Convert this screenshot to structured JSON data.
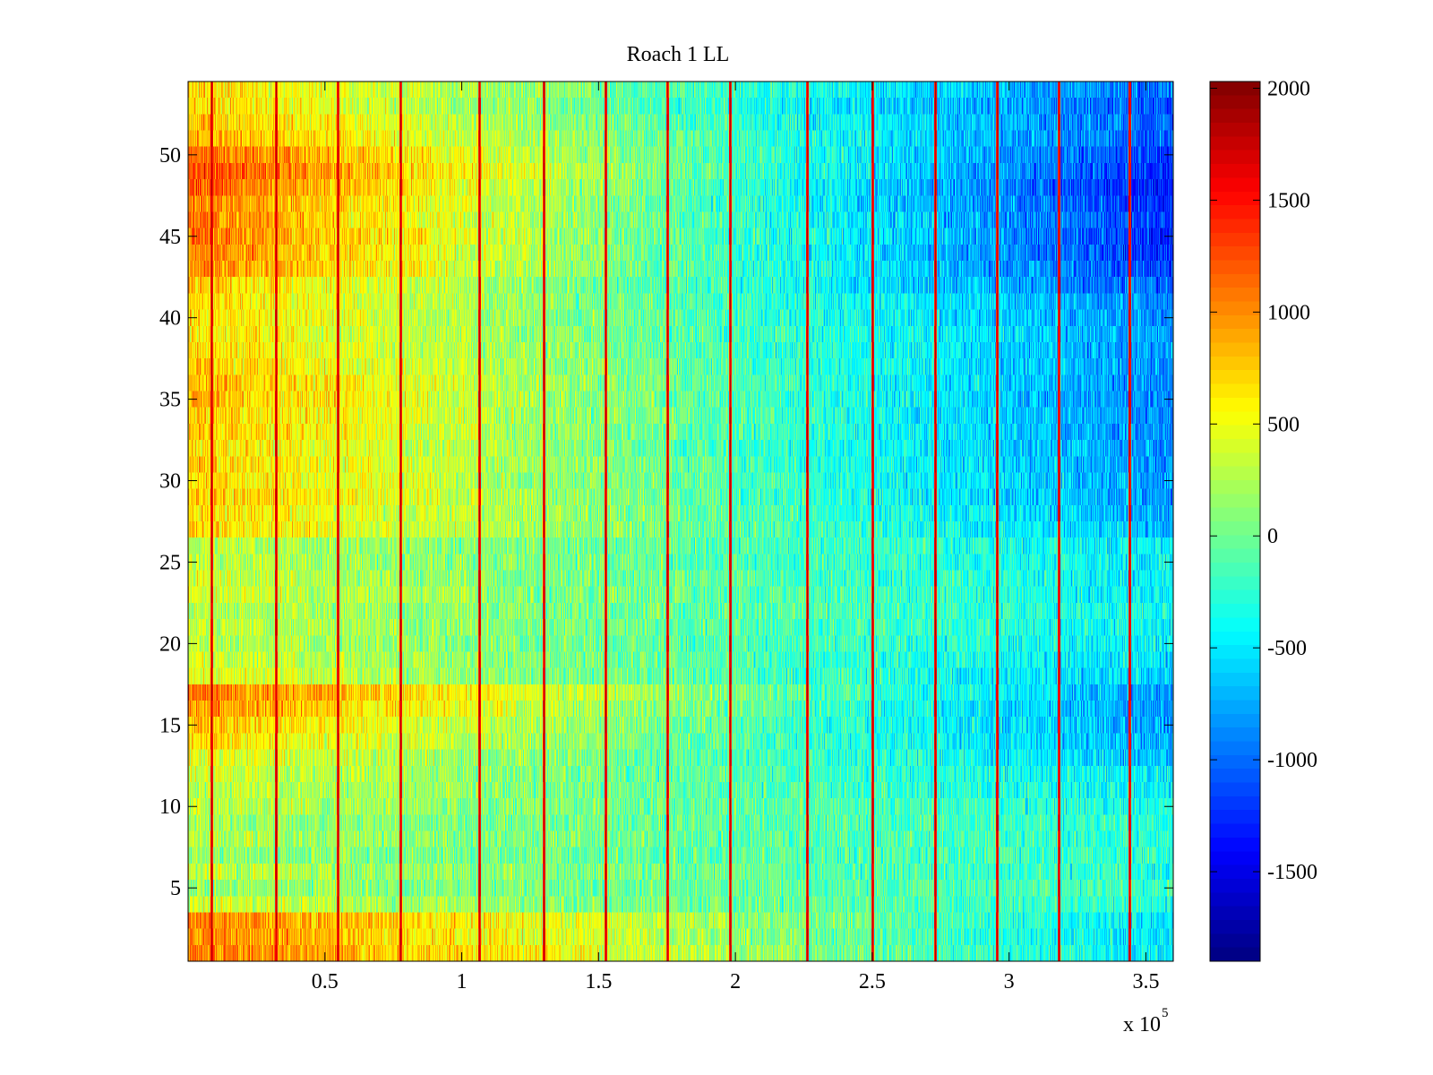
{
  "chart_data": {
    "type": "heatmap",
    "title": "Roach 1 LL",
    "xlabel": "",
    "ylabel": "",
    "x_multiplier_label": "x 10",
    "x_multiplier_exponent": "5",
    "xlim": [
      0,
      3.6
    ],
    "ylim": [
      0.5,
      54.5
    ],
    "x_ticks": [
      0.5,
      1,
      1.5,
      2,
      2.5,
      3,
      3.5
    ],
    "x_tick_labels": [
      "0.5",
      "1",
      "1.5",
      "2",
      "2.5",
      "3",
      "3.5"
    ],
    "y_ticks": [
      5,
      10,
      15,
      20,
      25,
      30,
      35,
      40,
      45,
      50
    ],
    "y_tick_labels": [
      "5",
      "10",
      "15",
      "20",
      "25",
      "30",
      "35",
      "40",
      "45",
      "50"
    ],
    "colorbar": {
      "colormap": "jet",
      "clim": [
        -1900,
        2030
      ],
      "ticks": [
        2000,
        1500,
        1000,
        500,
        0,
        -500,
        -1000,
        -1500
      ],
      "tick_labels": [
        "2000",
        "1500",
        "1000",
        "500",
        "0",
        "-500",
        "-1000",
        "-1500"
      ]
    },
    "rows": 54,
    "row_baselines_at_x0": [
      1100,
      1000,
      1050,
      350,
      150,
      300,
      150,
      250,
      200,
      300,
      350,
      400,
      500,
      700,
      800,
      1000,
      1100,
      500,
      400,
      300,
      350,
      300,
      400,
      350,
      300,
      300,
      700,
      700,
      800,
      700,
      750,
      700,
      800,
      800,
      850,
      850,
      750,
      700,
      650,
      700,
      700,
      750,
      1000,
      1050,
      1100,
      1050,
      1050,
      1200,
      1300,
      1150,
      900,
      800,
      700,
      700
    ],
    "row_baselines_at_x_end": [
      -500,
      -550,
      -550,
      -300,
      -200,
      -300,
      -250,
      -300,
      -300,
      -350,
      -450,
      -500,
      -650,
      -750,
      -800,
      -850,
      -800,
      -650,
      -550,
      -450,
      -450,
      -400,
      -450,
      -450,
      -450,
      -450,
      -700,
      -750,
      -850,
      -800,
      -850,
      -850,
      -900,
      -900,
      -900,
      -900,
      -850,
      -850,
      -800,
      -850,
      -900,
      -1050,
      -1150,
      -1250,
      -1250,
      -1200,
      -1250,
      -1350,
      -1300,
      -1200,
      -1050,
      -1050,
      -1100,
      -950
    ],
    "noise_amplitude": 300,
    "spike_columns_x": [
      0.085,
      0.32,
      0.545,
      0.775,
      1.065,
      1.3,
      1.525,
      1.75,
      1.98,
      2.26,
      2.5,
      2.73,
      2.955,
      3.18,
      3.44
    ],
    "spike_value": 1900
  }
}
